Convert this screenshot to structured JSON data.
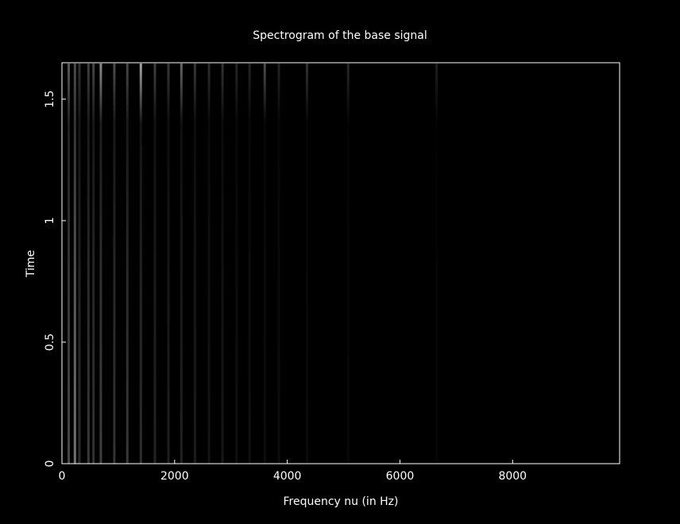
{
  "chart_data": {
    "type": "heatmap",
    "title": "Spectrogram of the base signal",
    "xlabel": "Frequency nu (in Hz)",
    "ylabel": "Time",
    "xlim": [
      0,
      9900
    ],
    "ylim": [
      0,
      1.65
    ],
    "x_ticks": [
      0,
      2000,
      4000,
      6000,
      8000
    ],
    "x_tick_labels": [
      "0",
      "2000",
      "4000",
      "6000",
      "8000"
    ],
    "y_ticks": [
      0,
      0.5,
      1,
      1.5
    ],
    "y_tick_labels": [
      "0",
      "0.5",
      "1",
      "1.5"
    ],
    "grid": false,
    "colormap": "grayscale",
    "background_color": "#000000",
    "foreground_color": "#ffffff",
    "bands": [
      {
        "freq": 120,
        "intensity": 0.28,
        "top_intensity": 0.35
      },
      {
        "freq": 230,
        "intensity": 0.45,
        "top_intensity": 0.3
      },
      {
        "freq": 310,
        "intensity": 0.18,
        "top_intensity": 0.2
      },
      {
        "freq": 470,
        "intensity": 0.22,
        "top_intensity": 0.25
      },
      {
        "freq": 560,
        "intensity": 0.2,
        "top_intensity": 0.28
      },
      {
        "freq": 690,
        "intensity": 0.25,
        "top_intensity": 0.55
      },
      {
        "freq": 930,
        "intensity": 0.2,
        "top_intensity": 0.3
      },
      {
        "freq": 1160,
        "intensity": 0.22,
        "top_intensity": 0.28
      },
      {
        "freq": 1400,
        "intensity": 0.18,
        "top_intensity": 0.65
      },
      {
        "freq": 1650,
        "intensity": 0.14,
        "top_intensity": 0.25
      },
      {
        "freq": 1890,
        "intensity": 0.12,
        "top_intensity": 0.22
      },
      {
        "freq": 2120,
        "intensity": 0.13,
        "top_intensity": 0.4
      },
      {
        "freq": 2360,
        "intensity": 0.11,
        "top_intensity": 0.22
      },
      {
        "freq": 2610,
        "intensity": 0.08,
        "top_intensity": 0.18
      },
      {
        "freq": 2850,
        "intensity": 0.09,
        "top_intensity": 0.2
      },
      {
        "freq": 3100,
        "intensity": 0.06,
        "top_intensity": 0.15
      },
      {
        "freq": 3330,
        "intensity": 0.06,
        "top_intensity": 0.14
      },
      {
        "freq": 3600,
        "intensity": 0.05,
        "top_intensity": 0.3
      },
      {
        "freq": 3850,
        "intensity": 0.05,
        "top_intensity": 0.14
      },
      {
        "freq": 4350,
        "intensity": 0.04,
        "top_intensity": 0.2
      },
      {
        "freq": 5080,
        "intensity": 0.03,
        "top_intensity": 0.16
      },
      {
        "freq": 6650,
        "intensity": 0.02,
        "top_intensity": 0.12
      }
    ]
  }
}
